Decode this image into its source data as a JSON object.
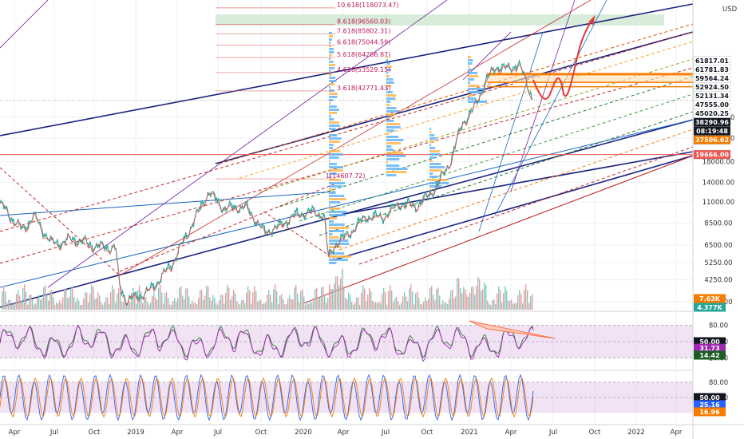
{
  "chart_data": [
    {
      "type": "candlestick",
      "currency": "USD",
      "scale": "log",
      "ylim": [
        2950,
        130000
      ],
      "x_ticks": [
        "Apr",
        "Jul",
        "Oct",
        "2019",
        "Apr",
        "Jul",
        "Oct",
        "2020",
        "Apr",
        "Jul",
        "Oct",
        "2021",
        "Apr",
        "Jul",
        "Oct",
        "2022",
        "Apr"
      ],
      "y_ticks": [
        "3250.00",
        "4250.00",
        "5250.00",
        "6500.00",
        "8500.00",
        "11000.00",
        "14000.00",
        "18000.00",
        "24000.00",
        "31000.00"
      ],
      "price_anchors": [
        {
          "t": 0,
          "p": 10800
        },
        {
          "t": 0.06,
          "p": 7800
        },
        {
          "t": 0.09,
          "p": 9300
        },
        {
          "t": 0.14,
          "p": 6600
        },
        {
          "t": 0.2,
          "p": 7000
        },
        {
          "t": 0.26,
          "p": 6400
        },
        {
          "t": 0.31,
          "p": 6300
        },
        {
          "t": 0.32,
          "p": 4000
        },
        {
          "t": 0.34,
          "p": 3300
        },
        {
          "t": 0.4,
          "p": 3700
        },
        {
          "t": 0.46,
          "p": 5100
        },
        {
          "t": 0.51,
          "p": 8000
        },
        {
          "t": 0.56,
          "p": 12500
        },
        {
          "t": 0.6,
          "p": 10200
        },
        {
          "t": 0.66,
          "p": 10400
        },
        {
          "t": 0.71,
          "p": 7600
        },
        {
          "t": 0.75,
          "p": 8200
        },
        {
          "t": 0.79,
          "p": 9400
        },
        {
          "t": 0.84,
          "p": 9800
        },
        {
          "t": 0.87,
          "p": 9300
        },
        {
          "t": 0.88,
          "p": 5600
        },
        {
          "t": 0.9,
          "p": 6600
        },
        {
          "t": 0.94,
          "p": 7600
        },
        {
          "t": 0.98,
          "p": 9200
        },
        {
          "t": 1.03,
          "p": 9200
        },
        {
          "t": 1.07,
          "p": 10800
        },
        {
          "t": 1.12,
          "p": 10500
        },
        {
          "t": 1.17,
          "p": 13200
        },
        {
          "t": 1.21,
          "p": 18500
        },
        {
          "t": 1.24,
          "p": 29000
        },
        {
          "t": 1.27,
          "p": 34000
        },
        {
          "t": 1.3,
          "p": 47000
        },
        {
          "t": 1.33,
          "p": 58000
        },
        {
          "t": 1.36,
          "p": 56000
        },
        {
          "t": 1.39,
          "p": 59500
        },
        {
          "t": 1.41,
          "p": 49000
        },
        {
          "t": 1.43,
          "p": 38290
        }
      ],
      "fib_levels": [
        {
          "label": "10.618(118073.47)",
          "price": 118073.47
        },
        {
          "label": "8.618(96560.03)",
          "price": 96560.03
        },
        {
          "label": "7.618(85802.31)",
          "price": 85802.31
        },
        {
          "label": "6.618(75044.59)",
          "price": 75044.59
        },
        {
          "label": "5.618(64286.87)",
          "price": 64286.87
        },
        {
          "label": "4.618(53529.15)",
          "price": 53529.15
        },
        {
          "label": "3.618(42771.43)",
          "price": 42771.43
        },
        {
          "label": "1(14607.72)",
          "price": 14607.72
        }
      ],
      "price_tags": [
        {
          "label": "61817.01",
          "price": 61817.01,
          "color": "#ffffff",
          "bg": "#ffffff",
          "fg": "#131722"
        },
        {
          "label": "61781.83",
          "price": 61781.83,
          "bg": "#ffffff",
          "fg": "#131722"
        },
        {
          "label": "59564.24",
          "price": 59564.24,
          "bg": "#ffffff",
          "fg": "#131722"
        },
        {
          "label": "52924.50",
          "price": 52924.5,
          "bg": "#ffffff",
          "fg": "#131722"
        },
        {
          "label": "52131.34",
          "price": 52131.34,
          "bg": "#ffffff",
          "fg": "#131722"
        },
        {
          "label": "47555.00",
          "price": 47555.0,
          "bg": "#ffffff",
          "fg": "#131722"
        },
        {
          "label": "45020.25",
          "price": 45020.25,
          "bg": "#ffffff",
          "fg": "#131722"
        },
        {
          "label": "38290.96",
          "price": 38290.96,
          "bg": "#131722",
          "fg": "#ffffff"
        },
        {
          "label": "08:19:48",
          "price": 36500,
          "bg": "#131722",
          "fg": "#ffffff"
        },
        {
          "label": "37506.62",
          "price": 34400,
          "bg": "#f57c00",
          "fg": "#ffffff"
        },
        {
          "label": "19666.00",
          "price": 19666.0,
          "bg": "#ef5350",
          "fg": "#ffffff"
        }
      ],
      "volume_tags": [
        {
          "label": "7.63K",
          "bg": "#f57c00",
          "fg": "#ffffff"
        },
        {
          "label": "4.377K",
          "bg": "#26a69a",
          "fg": "#ffffff"
        }
      ]
    },
    {
      "type": "line",
      "pane": "rsi",
      "ylim": [
        0,
        100
      ],
      "y_ticks": [
        "80.00",
        "50.00",
        "20.00"
      ],
      "tags": [
        {
          "label": "50.00",
          "bg": "#131722",
          "fg": "#ffffff"
        },
        {
          "label": "31.73",
          "bg": "#9c27b0",
          "fg": "#ffffff"
        },
        {
          "label": "14.42",
          "bg": "#1b5e20",
          "fg": "#ffffff"
        }
      ]
    },
    {
      "type": "line",
      "pane": "stochastic",
      "ylim": [
        0,
        100
      ],
      "y_ticks": [
        "80.00",
        "50.00"
      ],
      "tags": [
        {
          "label": "50.00",
          "bg": "#131722",
          "fg": "#ffffff"
        },
        {
          "label": "25.16",
          "bg": "#2962ff",
          "fg": "#ffffff"
        },
        {
          "label": "16.96",
          "bg": "#f57c00",
          "fg": "#ffffff"
        }
      ]
    }
  ]
}
